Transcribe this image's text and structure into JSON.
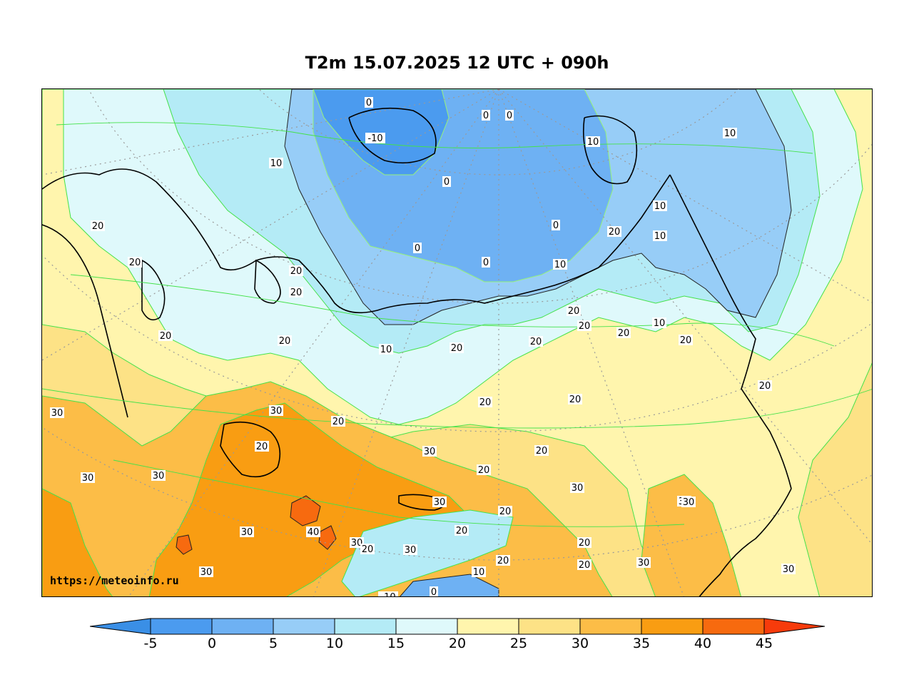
{
  "title": "T2m 15.07.2025 12 UTC + 090h",
  "source_url": "https://meteoinfo.ru",
  "colorbar": {
    "extend": "both",
    "under_color": "#3a8fe6",
    "over_color": "#f73b0b",
    "bins": [
      {
        "from": -5,
        "to": 0,
        "color": "#4b9bef"
      },
      {
        "from": 0,
        "to": 5,
        "color": "#6eb1f3"
      },
      {
        "from": 5,
        "to": 10,
        "color": "#97cdf7"
      },
      {
        "from": 10,
        "to": 15,
        "color": "#b4ebf6"
      },
      {
        "from": 15,
        "to": 20,
        "color": "#dff9fb"
      },
      {
        "from": 20,
        "to": 25,
        "color": "#fff5ad"
      },
      {
        "from": 25,
        "to": 30,
        "color": "#fde286"
      },
      {
        "from": 30,
        "to": 35,
        "color": "#fcbd47"
      },
      {
        "from": 35,
        "to": 40,
        "color": "#f99d12"
      },
      {
        "from": 40,
        "to": 45,
        "color": "#f76a0f"
      }
    ],
    "tick_labels": [
      "-5",
      "0",
      "5",
      "10",
      "15",
      "20",
      "25",
      "30",
      "35",
      "40",
      "45"
    ]
  },
  "contour_labels": [
    "0",
    "0",
    "0",
    "-10",
    "0",
    "10",
    "10",
    "10",
    "0",
    "20",
    "0",
    "0",
    "10",
    "20",
    "10",
    "20",
    "20",
    "20",
    "20",
    "20",
    "10",
    "10",
    "20",
    "20",
    "20",
    "20",
    "20",
    "10",
    "20",
    "20",
    "30",
    "30",
    "20",
    "20",
    "20",
    "20",
    "20",
    "20",
    "30",
    "30",
    "30",
    "30",
    "20",
    "30",
    "40",
    "30",
    "20",
    "30",
    "30",
    "20",
    "10",
    "30",
    "30",
    "20",
    "0",
    "-10",
    "30",
    "30",
    "30",
    "20",
    "20"
  ]
}
